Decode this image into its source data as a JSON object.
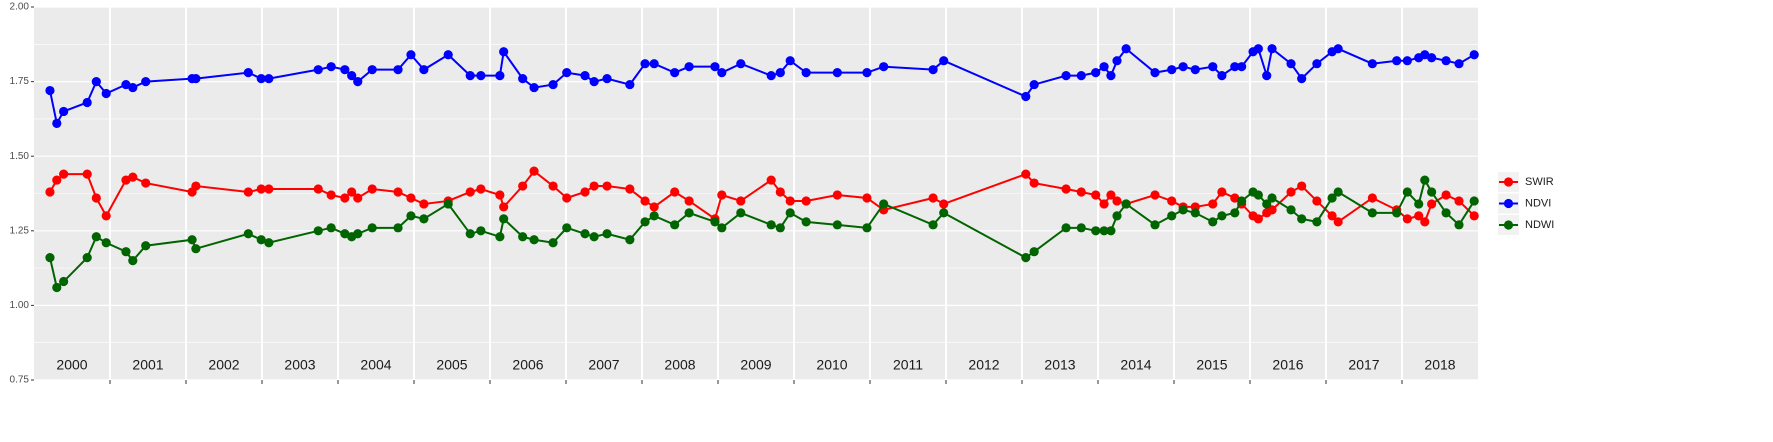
{
  "chart_data": {
    "type": "line",
    "x": [
      2000.21,
      2000.3,
      2000.39,
      2000.7,
      2000.82,
      2000.95,
      2001.21,
      2001.3,
      2001.47,
      2002.08,
      2002.13,
      2002.82,
      2002.99,
      2003.09,
      2003.74,
      2003.91,
      2004.09,
      2004.18,
      2004.26,
      2004.45,
      2004.79,
      2004.96,
      2005.13,
      2005.45,
      2005.74,
      2005.88,
      2006.13,
      2006.18,
      2006.43,
      2006.58,
      2006.83,
      2007.01,
      2007.25,
      2007.37,
      2007.54,
      2007.84,
      2008.04,
      2008.16,
      2008.43,
      2008.62,
      2008.96,
      2009.05,
      2009.3,
      2009.7,
      2009.82,
      2009.95,
      2010.16,
      2010.57,
      2010.96,
      2011.18,
      2011.83,
      2011.97,
      2013.05,
      2013.16,
      2013.58,
      2013.78,
      2013.97,
      2014.08,
      2014.17,
      2014.25,
      2014.37,
      2014.75,
      2014.97,
      2015.12,
      2015.28,
      2015.51,
      2015.63,
      2015.8,
      2015.89,
      2016.04,
      2016.11,
      2016.22,
      2016.29,
      2016.54,
      2016.68,
      2016.88,
      2017.08,
      2017.16,
      2017.61,
      2017.93,
      2018.07,
      2018.22,
      2018.3,
      2018.39,
      2018.58,
      2018.75,
      2018.95
    ],
    "series": [
      {
        "name": "SWIR",
        "color": "#ff0000",
        "values": [
          1.38,
          1.42,
          1.44,
          1.44,
          1.36,
          1.3,
          1.42,
          1.43,
          1.41,
          1.38,
          1.4,
          1.38,
          1.39,
          1.39,
          1.39,
          1.37,
          1.36,
          1.38,
          1.36,
          1.39,
          1.38,
          1.36,
          1.34,
          1.35,
          1.38,
          1.39,
          1.37,
          1.33,
          1.4,
          1.45,
          1.4,
          1.36,
          1.38,
          1.4,
          1.4,
          1.39,
          1.35,
          1.33,
          1.38,
          1.35,
          1.29,
          1.37,
          1.35,
          1.42,
          1.38,
          1.35,
          1.35,
          1.37,
          1.36,
          1.32,
          1.36,
          1.34,
          1.44,
          1.41,
          1.39,
          1.38,
          1.37,
          1.34,
          1.37,
          1.35,
          1.34,
          1.37,
          1.35,
          1.33,
          1.33,
          1.34,
          1.38,
          1.36,
          1.34,
          1.3,
          1.29,
          1.31,
          1.32,
          1.38,
          1.4,
          1.35,
          1.3,
          1.28,
          1.36,
          1.32,
          1.29,
          1.3,
          1.28,
          1.34,
          1.37,
          1.35,
          1.3
        ]
      },
      {
        "name": "NDVI",
        "color": "#0000ff",
        "values": [
          1.72,
          1.61,
          1.65,
          1.68,
          1.75,
          1.71,
          1.74,
          1.73,
          1.75,
          1.76,
          1.76,
          1.78,
          1.76,
          1.76,
          1.79,
          1.8,
          1.79,
          1.77,
          1.75,
          1.79,
          1.79,
          1.84,
          1.79,
          1.84,
          1.77,
          1.77,
          1.77,
          1.85,
          1.76,
          1.73,
          1.74,
          1.78,
          1.77,
          1.75,
          1.76,
          1.74,
          1.81,
          1.81,
          1.78,
          1.8,
          1.8,
          1.78,
          1.81,
          1.77,
          1.78,
          1.82,
          1.78,
          1.78,
          1.78,
          1.8,
          1.79,
          1.82,
          1.7,
          1.74,
          1.77,
          1.77,
          1.78,
          1.8,
          1.77,
          1.82,
          1.86,
          1.78,
          1.79,
          1.8,
          1.79,
          1.8,
          1.77,
          1.8,
          1.8,
          1.85,
          1.86,
          1.77,
          1.86,
          1.81,
          1.76,
          1.81,
          1.85,
          1.86,
          1.81,
          1.82,
          1.82,
          1.83,
          1.84,
          1.83,
          1.82,
          1.81,
          1.84
        ]
      },
      {
        "name": "NDWI",
        "color": "#006400",
        "values": [
          1.16,
          1.06,
          1.08,
          1.16,
          1.23,
          1.21,
          1.18,
          1.15,
          1.2,
          1.22,
          1.19,
          1.24,
          1.22,
          1.21,
          1.25,
          1.26,
          1.24,
          1.23,
          1.24,
          1.26,
          1.26,
          1.3,
          1.29,
          1.34,
          1.24,
          1.25,
          1.23,
          1.29,
          1.23,
          1.22,
          1.21,
          1.26,
          1.24,
          1.23,
          1.24,
          1.22,
          1.28,
          1.3,
          1.27,
          1.31,
          1.28,
          1.26,
          1.31,
          1.27,
          1.26,
          1.31,
          1.28,
          1.27,
          1.26,
          1.34,
          1.27,
          1.31,
          1.16,
          1.18,
          1.26,
          1.26,
          1.25,
          1.25,
          1.25,
          1.3,
          1.34,
          1.27,
          1.3,
          1.32,
          1.31,
          1.28,
          1.3,
          1.31,
          1.35,
          1.38,
          1.37,
          1.34,
          1.36,
          1.32,
          1.29,
          1.28,
          1.36,
          1.38,
          1.31,
          1.31,
          1.38,
          1.34,
          1.42,
          1.38,
          1.31,
          1.27,
          1.35
        ]
      }
    ],
    "xlim": [
      2000,
      2019
    ],
    "xticks": [
      {
        "value": 2000.5,
        "label": "2000"
      },
      {
        "value": 2001.5,
        "label": "2001"
      },
      {
        "value": 2002.5,
        "label": "2002"
      },
      {
        "value": 2003.5,
        "label": "2003"
      },
      {
        "value": 2004.5,
        "label": "2004"
      },
      {
        "value": 2005.5,
        "label": "2005"
      },
      {
        "value": 2006.5,
        "label": "2006"
      },
      {
        "value": 2007.5,
        "label": "2007"
      },
      {
        "value": 2008.5,
        "label": "2008"
      },
      {
        "value": 2009.5,
        "label": "2009"
      },
      {
        "value": 2010.5,
        "label": "2010"
      },
      {
        "value": 2011.5,
        "label": "2011"
      },
      {
        "value": 2012.5,
        "label": "2012"
      },
      {
        "value": 2013.5,
        "label": "2013"
      },
      {
        "value": 2014.5,
        "label": "2014"
      },
      {
        "value": 2015.5,
        "label": "2015"
      },
      {
        "value": 2016.5,
        "label": "2016"
      },
      {
        "value": 2017.5,
        "label": "2017"
      },
      {
        "value": 2018.5,
        "label": "2018"
      }
    ],
    "xgrid": [
      2001,
      2002,
      2003,
      2004,
      2005,
      2006,
      2007,
      2008,
      2009,
      2010,
      2011,
      2012,
      2013,
      2014,
      2015,
      2016,
      2017,
      2018
    ],
    "ylim": [
      0.75,
      2.0
    ],
    "yticks": [
      {
        "value": 0.75,
        "label": "0.75"
      },
      {
        "value": 1.0,
        "label": "1.00"
      },
      {
        "value": 1.25,
        "label": "1.25"
      },
      {
        "value": 1.5,
        "label": "1.50"
      },
      {
        "value": 1.75,
        "label": "1.75"
      },
      {
        "value": 2.0,
        "label": "2.00"
      }
    ],
    "yminor": [
      0.875,
      1.125,
      1.375,
      1.625,
      1.875
    ],
    "grid": true,
    "legend": "right"
  }
}
